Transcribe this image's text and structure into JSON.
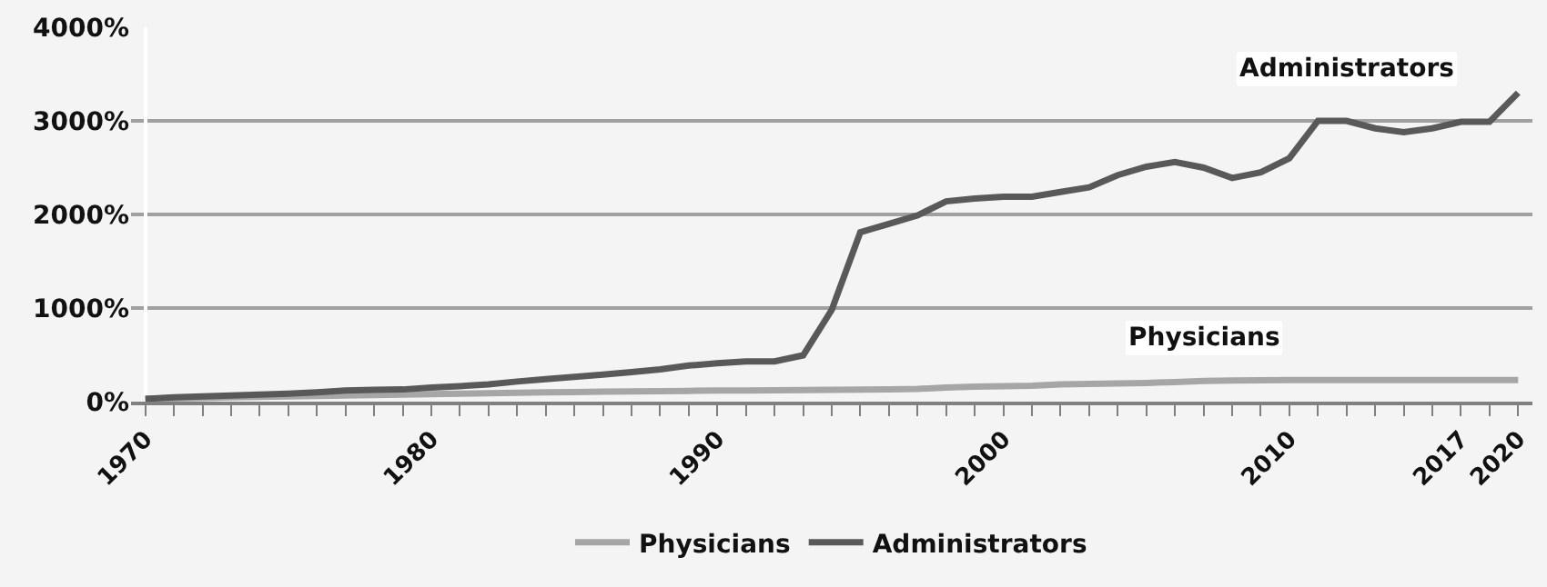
{
  "chart_data": {
    "type": "line",
    "categories": [
      "1970",
      null,
      null,
      null,
      null,
      null,
      null,
      null,
      null,
      null,
      "1980",
      null,
      null,
      null,
      null,
      null,
      null,
      null,
      null,
      null,
      "1990",
      null,
      null,
      null,
      null,
      null,
      null,
      null,
      null,
      null,
      "2000",
      null,
      null,
      null,
      null,
      null,
      null,
      null,
      null,
      null,
      "2010",
      null,
      null,
      null,
      null,
      null,
      "2017",
      null,
      "2020"
    ],
    "series": [
      {
        "name": "Physicians",
        "color": "#a6a6a6",
        "values": [
          30,
          35,
          40,
          45,
          50,
          55,
          60,
          65,
          70,
          75,
          80,
          85,
          90,
          95,
          100,
          103,
          106,
          109,
          112,
          115,
          118,
          120,
          122,
          124,
          126,
          128,
          132,
          136,
          150,
          160,
          165,
          170,
          185,
          190,
          195,
          200,
          210,
          220,
          225,
          228,
          230,
          230,
          230,
          230,
          230,
          230,
          230,
          230,
          230
        ]
      },
      {
        "name": "Administrators",
        "color": "#595959",
        "values": [
          30,
          45,
          55,
          65,
          75,
          85,
          100,
          120,
          125,
          130,
          150,
          165,
          185,
          215,
          240,
          265,
          290,
          315,
          345,
          385,
          410,
          430,
          430,
          495,
          980,
          1810,
          1900,
          1990,
          2140,
          2170,
          2190,
          2190,
          2240,
          2290,
          2420,
          2510,
          2560,
          2500,
          2390,
          2450,
          2600,
          3000,
          3000,
          2920,
          2880,
          2920,
          2990,
          2990,
          3300
        ]
      }
    ],
    "ylim": [
      0,
      4000
    ],
    "yticks": [
      {
        "value": 0,
        "label": "0%"
      },
      {
        "value": 1000,
        "label": "1000%"
      },
      {
        "value": 2000,
        "label": "2000%"
      },
      {
        "value": 3000,
        "label": "3000%"
      },
      {
        "value": 4000,
        "label": "4000%"
      }
    ],
    "annotations": [
      "Administrators",
      "Physicians"
    ],
    "grid": "y",
    "legend": "bottom",
    "marker": "none",
    "line_style": "solid"
  }
}
